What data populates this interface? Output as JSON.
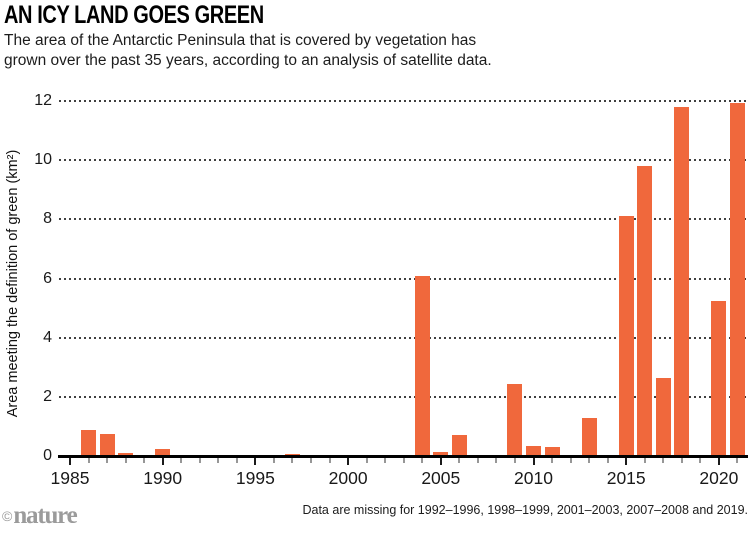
{
  "header": {
    "title": "AN ICY LAND GOES GREEN",
    "subtitle_line1": "The area of the Antarctic Peninsula that is covered by vegetation has",
    "subtitle_line2": "grown over the past 35 years, according to an analysis of satellite data."
  },
  "chart_data": {
    "type": "bar",
    "title": "AN ICY LAND GOES GREEN",
    "ylabel": "Area meeting the definition of green (km²)",
    "xlabel": "",
    "x": [
      1986,
      1987,
      1988,
      1989,
      1990,
      1991,
      1997,
      2000,
      2004,
      2005,
      2006,
      2009,
      2010,
      2011,
      2012,
      2013,
      2014,
      2015,
      2016,
      2017,
      2018,
      2020,
      2021
    ],
    "values": [
      0.87,
      0.75,
      0.1,
      0.02,
      0.22,
      0.02,
      0.07,
      0.02,
      6.1,
      0.13,
      0.7,
      2.45,
      0.35,
      0.3,
      0.02,
      1.3,
      0.02,
      8.1,
      9.8,
      2.65,
      11.8,
      5.25,
      11.95
    ],
    "ylim": [
      0,
      12
    ],
    "yticks": [
      0,
      2,
      4,
      6,
      8,
      10,
      12
    ],
    "xticks_major": [
      1985,
      1990,
      1995,
      2000,
      2005,
      2010,
      2015,
      2020
    ],
    "xticks_minor_range": [
      1985,
      2021
    ],
    "grid": "horizontal dotted",
    "legend": "none",
    "bar_color": "#F0683C"
  },
  "footer": {
    "note": "Data are missing for 1992–1996, 1998–1999, 2001–2003, 2007–2008 and 2019.",
    "logo_copyright": "©",
    "logo_name": "nature"
  },
  "colors": {
    "bar": "#F0683C",
    "axis": "#000000",
    "grid_dots": "#3f3f3f",
    "minor_tick": "#979797",
    "text": "#1a1a1a",
    "logo_gray": "#9b9b9b"
  }
}
